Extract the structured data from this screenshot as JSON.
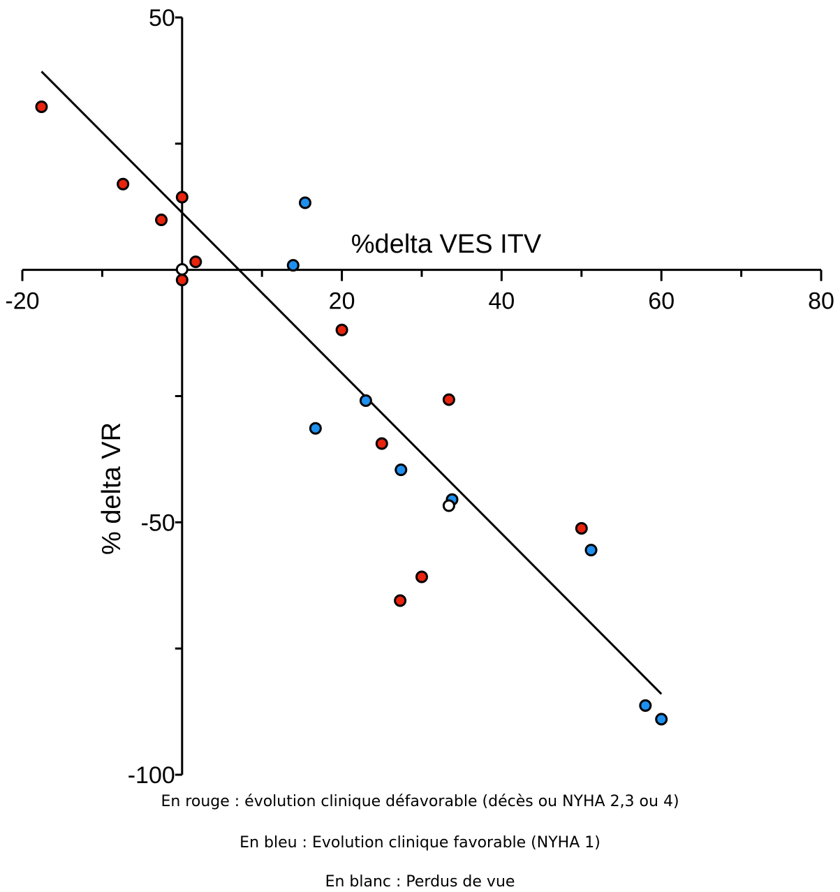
{
  "chart_data": {
    "type": "scatter",
    "xlabel": "%delta VES ITV",
    "ylabel": "% delta VR",
    "xlim": [
      -20,
      80
    ],
    "ylim": [
      -100,
      50
    ],
    "x_ticks": [
      -20,
      20,
      40,
      60,
      80
    ],
    "y_ticks": [
      50,
      -50,
      -100
    ],
    "x_tick_labels": [
      "-20",
      "20",
      "40",
      "60",
      "80"
    ],
    "y_tick_labels": [
      "50",
      "-50",
      "-100"
    ],
    "grid": false,
    "series": [
      {
        "color": "#e8230e",
        "points": [
          {
            "x": -17.6,
            "y": 32.3
          },
          {
            "x": -7.4,
            "y": 17.0
          },
          {
            "x": -2.6,
            "y": 9.9
          },
          {
            "x": 0.0,
            "y": 14.4
          },
          {
            "x": 1.7,
            "y": 1.6
          },
          {
            "x": 0.0,
            "y": -2.0
          },
          {
            "x": 20.0,
            "y": -11.9
          },
          {
            "x": 33.4,
            "y": -25.7
          },
          {
            "x": 25.0,
            "y": -34.4
          },
          {
            "x": 50.0,
            "y": -51.2
          },
          {
            "x": 30.0,
            "y": -60.8
          },
          {
            "x": 27.3,
            "y": -65.5
          }
        ]
      },
      {
        "color": "#1e90ef",
        "points": [
          {
            "x": 15.4,
            "y": 13.3
          },
          {
            "x": 13.9,
            "y": 0.9
          },
          {
            "x": 23.0,
            "y": -25.9
          },
          {
            "x": 16.7,
            "y": -31.4
          },
          {
            "x": 27.4,
            "y": -39.6
          },
          {
            "x": 33.8,
            "y": -45.5
          },
          {
            "x": 51.2,
            "y": -55.5
          },
          {
            "x": 58.0,
            "y": -86.3
          },
          {
            "x": 60.0,
            "y": -89.0
          }
        ]
      },
      {
        "color": "#ffffff",
        "points": [
          {
            "x": 0.0,
            "y": 0.1
          },
          {
            "x": 33.4,
            "y": -46.7
          }
        ]
      }
    ],
    "regression_line": {
      "x1": -17.6,
      "y1": 39.3,
      "x2": 60.0,
      "y2": -84.0
    }
  },
  "legend": {
    "red": "En rouge : évolution clinique défavorable (décès ou NYHA 2,3 ou 4)",
    "blue": "En bleu : Evolution clinique favorable (NYHA 1)",
    "white": "En blanc : Perdus de vue"
  }
}
